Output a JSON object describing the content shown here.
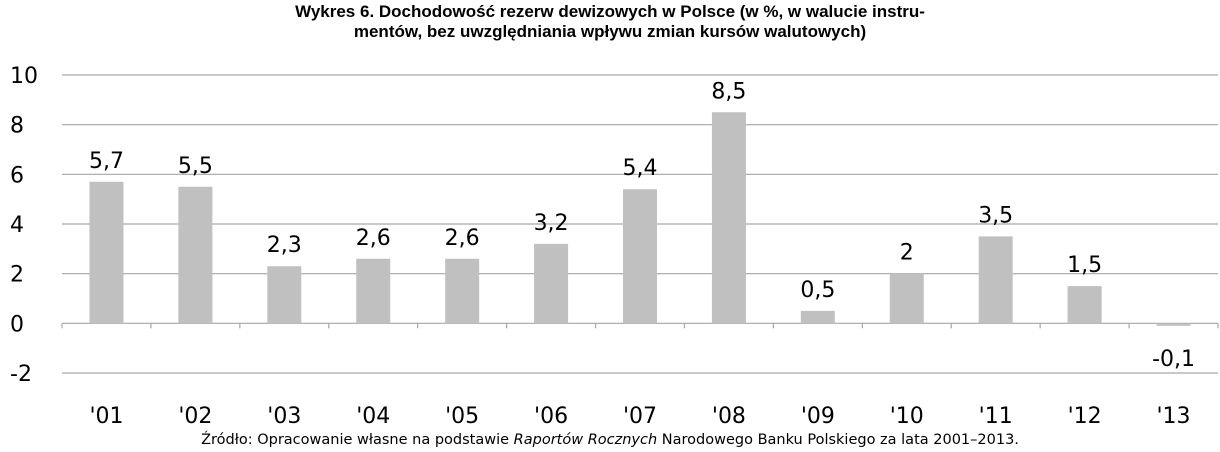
{
  "chart_data": {
    "type": "bar",
    "title_line1": "Wykres 6. Dochodowość rezerw dewizowych w Polsce (w %, w walucie instru-",
    "title_line2": "mentów, bez uwzględniania wpływu zmian kursów walutowych)",
    "categories": [
      "'01",
      "'02",
      "'03",
      "'04",
      "'05",
      "'06",
      "'07",
      "'08",
      "'09",
      "'10",
      "'11",
      "'12",
      "'13"
    ],
    "values": [
      5.7,
      5.5,
      2.3,
      2.6,
      2.6,
      3.2,
      5.4,
      8.5,
      0.5,
      2.0,
      3.5,
      1.5,
      -0.1
    ],
    "data_labels": [
      "5,7",
      "5,5",
      "2,3",
      "2,6",
      "2,6",
      "3,2",
      "5,4",
      "8,5",
      "0,5",
      "2",
      "3,5",
      "1,5",
      "-0,1"
    ],
    "y_ticks": [
      10,
      8,
      6,
      4,
      2,
      0,
      -2
    ],
    "y_tick_labels": [
      "10",
      "8",
      "6",
      "4",
      "2",
      "0",
      "-2"
    ],
    "ylim": [
      -2,
      10
    ],
    "grid": true,
    "legend": "none",
    "bar_color": "#c0c0c0",
    "grid_color": "#a6a6a6",
    "xlabel": "",
    "ylabel": ""
  },
  "source": {
    "prefix": "Źródło: Opracowanie własne na podstawie ",
    "italic": "Raportów Rocznych",
    "suffix": " Narodowego Banku Polskiego za lata 2001–2013."
  }
}
